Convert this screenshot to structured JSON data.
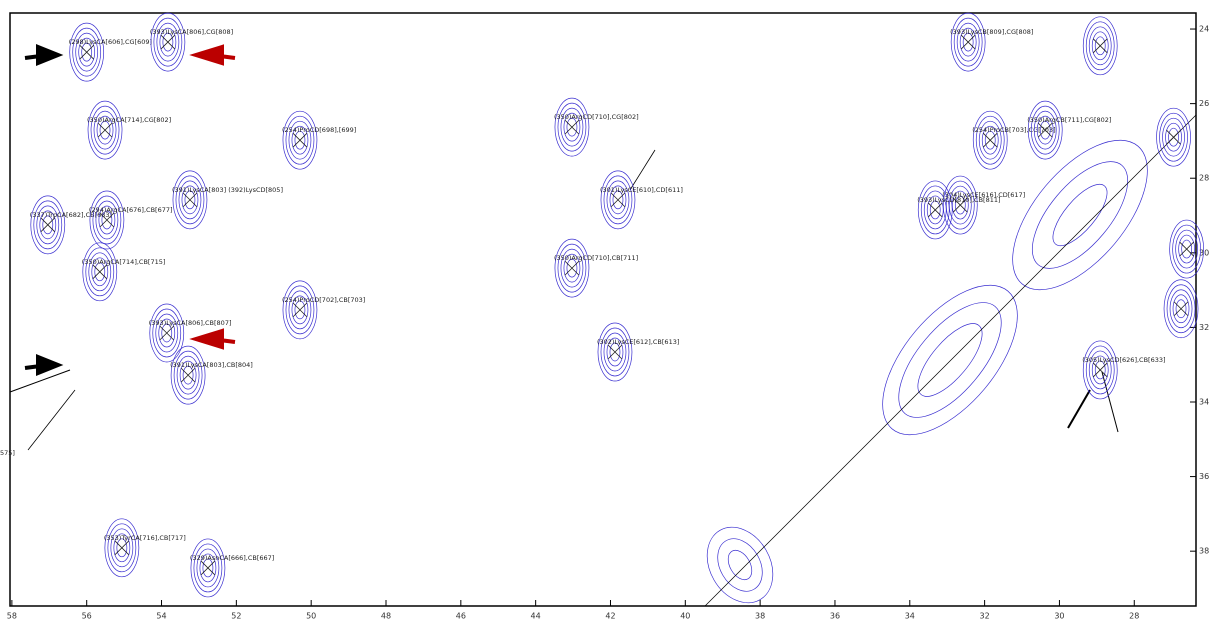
{
  "chart_data": {
    "type": "contour",
    "xlim": [
      58.05,
      26.35
    ],
    "ylim": [
      39.47,
      23.57
    ],
    "xticks": [
      58,
      56,
      54,
      52,
      50,
      48,
      46,
      44,
      42,
      40,
      38,
      36,
      34,
      32,
      30,
      28
    ],
    "yticks": [
      24,
      26,
      28,
      30,
      32,
      34,
      36,
      38
    ],
    "peaks": [
      {
        "label": "(298)LysCA[606],CG[609]",
        "x": 56.0,
        "y": 24.62
      },
      {
        "label": "(393)LysCA[806],CG[808]",
        "x": 53.83,
        "y": 24.35
      },
      {
        "label": "(350)ArgCA[714],CG[802]",
        "x": 55.51,
        "y": 26.71
      },
      {
        "label": "(254)ProCD[698],[699]",
        "x": 50.3,
        "y": 26.98
      },
      {
        "label": "(391)LysCA[803] (392)LysCD[805]",
        "x": 53.24,
        "y": 28.58
      },
      {
        "label": "(337)TrpCA[682],CB[683]",
        "x": 57.04,
        "y": 29.25
      },
      {
        "label": "(294)ArgCA[676],CB[677]",
        "x": 55.46,
        "y": 29.12
      },
      {
        "label": "(350)ArgCA[714],CB[715]",
        "x": 55.65,
        "y": 30.51
      },
      {
        "label": "(254)ProCD[702],CB[703]",
        "x": 50.3,
        "y": 31.53
      },
      {
        "label": "(393)LysCA[806],CB[807]",
        "x": 53.86,
        "y": 32.15
      },
      {
        "label": "(391)LysCA[803],CB[804]",
        "x": 53.29,
        "y": 33.28
      },
      {
        "label": "(350)ArgCD[710],CG[802]",
        "x": 43.03,
        "y": 26.63
      },
      {
        "label": "(301)LysCE[610],CD[611]",
        "x": 41.8,
        "y": 28.58
      },
      {
        "label": "(350)ArgCD[710],CB[711]",
        "x": 43.03,
        "y": 30.41
      },
      {
        "label": "(302)LysCE[612],CB[613]",
        "x": 41.88,
        "y": 32.66
      },
      {
        "label": "(353)TyrCA[716],CB[717]",
        "x": 55.06,
        "y": 37.91
      },
      {
        "label": "(329)AsnCA[666],CB[667]",
        "x": 52.76,
        "y": 38.45
      },
      {
        "label": "(393)LysCB[809],CG[808]",
        "x": 32.44,
        "y": 24.35
      },
      {
        "label": "(254)ProCB[703],CG[703]",
        "x": 31.85,
        "y": 26.98
      },
      {
        "label": "(350)ArgCB[711],CG[802]",
        "x": 30.38,
        "y": 26.71
      },
      {
        "label": "(304)LysCE[616],CD[617]",
        "x": 32.65,
        "y": 28.72
      },
      {
        "label": "(393)LysCD[810],CB[811]",
        "x": 33.32,
        "y": 28.85
      },
      {
        "label": "(305)LysCD[626],CB[633]",
        "x": 28.91,
        "y": 33.14
      }
    ],
    "unlabeled_peaks": [
      {
        "x": 28.91,
        "y": 24.45
      },
      {
        "x": 26.75,
        "y": 31.5
      },
      {
        "x": 26.6,
        "y": 29.9
      },
      {
        "x": 26.95,
        "y": 26.9
      }
    ],
    "annotations": [
      "575]"
    ]
  }
}
